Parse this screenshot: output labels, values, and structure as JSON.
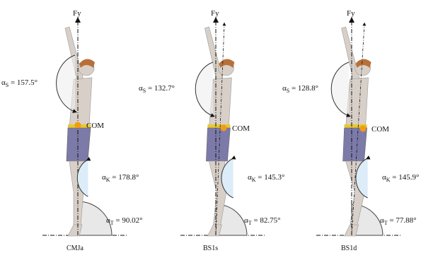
{
  "figure": {
    "panels": [
      {
        "id": "CMJa",
        "caption": "CMJa",
        "force_label": "Fy",
        "com_label": "COM",
        "angles": {
          "shoulder": {
            "symbol": "α",
            "subscript": "S",
            "value": "157.5°"
          },
          "knee": {
            "symbol": "α",
            "subscript": "K",
            "value": "178.8°"
          },
          "trunk": {
            "symbol": "α",
            "subscript": "T",
            "value": "90.02°"
          }
        }
      },
      {
        "id": "BS1s",
        "caption": "BS1s",
        "force_label": "Fy",
        "com_label": "COM",
        "angles": {
          "shoulder": {
            "symbol": "α",
            "subscript": "S",
            "value": "132.7°"
          },
          "knee": {
            "symbol": "α",
            "subscript": "K",
            "value": "145.3°"
          },
          "trunk": {
            "symbol": "α",
            "subscript": "T",
            "value": "82.75°"
          }
        }
      },
      {
        "id": "BS1d",
        "caption": "BS1d",
        "force_label": "Fy",
        "com_label": "COM",
        "angles": {
          "shoulder": {
            "symbol": "α",
            "subscript": "S",
            "value": "128.8°"
          },
          "knee": {
            "symbol": "α",
            "subscript": "K",
            "value": "145.9°"
          },
          "trunk": {
            "symbol": "α",
            "subscript": "T",
            "value": "77.88°"
          }
        }
      }
    ],
    "colors": {
      "com_marker": "#f39c12",
      "belt": "#e8c830",
      "shorts": "#7c7aa8",
      "skin": "#d8d0c8",
      "hair": "#b8703a",
      "knee_arc_fill": "#dcecf8",
      "shoulder_arc_fill": "#eeeeee"
    }
  }
}
